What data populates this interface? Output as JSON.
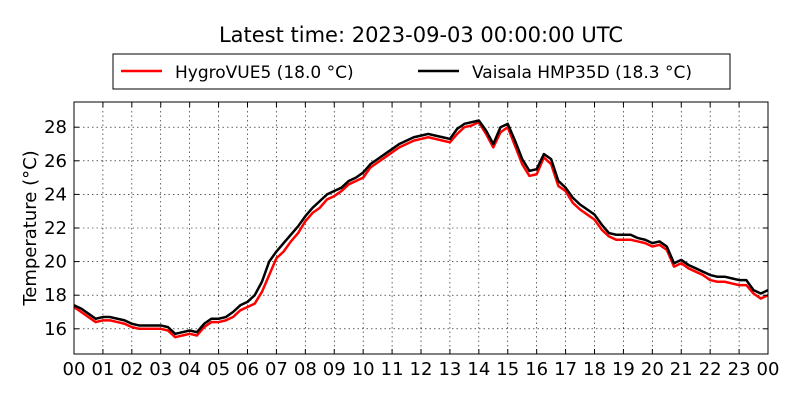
{
  "chart_data": {
    "type": "line",
    "title": "Latest time: 2023-09-03 00:00:00 UTC",
    "ylabel": "Temperature (°C)",
    "xlabel": "",
    "xlim": [
      0,
      24
    ],
    "ylim": [
      14.5,
      29.5
    ],
    "grid": true,
    "legend_position": "top",
    "x_tick_labels": [
      "00",
      "01",
      "02",
      "03",
      "04",
      "05",
      "06",
      "07",
      "08",
      "09",
      "10",
      "11",
      "12",
      "13",
      "14",
      "15",
      "16",
      "17",
      "18",
      "19",
      "20",
      "21",
      "22",
      "23",
      "00"
    ],
    "y_ticks": [
      16,
      18,
      20,
      22,
      24,
      26,
      28
    ],
    "y_tick_labels": [
      "16",
      "18",
      "20",
      "22",
      "24",
      "26",
      "28"
    ],
    "x_hours": [
      0,
      0.25,
      0.5,
      0.75,
      1,
      1.25,
      1.5,
      1.75,
      2,
      2.25,
      2.5,
      2.75,
      3,
      3.25,
      3.5,
      3.75,
      4,
      4.25,
      4.5,
      4.75,
      5,
      5.25,
      5.5,
      5.75,
      6,
      6.25,
      6.5,
      6.75,
      7,
      7.25,
      7.5,
      7.75,
      8,
      8.25,
      8.5,
      8.75,
      9,
      9.25,
      9.5,
      9.75,
      10,
      10.25,
      10.5,
      10.75,
      11,
      11.25,
      11.5,
      11.75,
      12,
      12.25,
      12.5,
      12.75,
      13,
      13.25,
      13.5,
      13.75,
      14,
      14.25,
      14.5,
      14.75,
      15,
      15.25,
      15.5,
      15.75,
      16,
      16.25,
      16.5,
      16.75,
      17,
      17.25,
      17.5,
      17.75,
      18,
      18.25,
      18.5,
      18.75,
      19,
      19.25,
      19.5,
      19.75,
      20,
      20.25,
      20.5,
      20.75,
      21,
      21.25,
      21.5,
      21.75,
      22,
      22.25,
      22.5,
      22.75,
      23,
      23.25,
      23.5,
      23.75,
      24
    ],
    "series": [
      {
        "name": "HygroVUE5 (18.0 °C)",
        "color": "#ff0000",
        "values": [
          17.3,
          17.0,
          16.7,
          16.4,
          16.5,
          16.5,
          16.4,
          16.3,
          16.1,
          16.0,
          16.0,
          16.0,
          16.0,
          15.9,
          15.5,
          15.6,
          15.7,
          15.6,
          16.1,
          16.4,
          16.4,
          16.5,
          16.7,
          17.1,
          17.3,
          17.5,
          18.2,
          19.2,
          20.2,
          20.6,
          21.2,
          21.7,
          22.4,
          22.9,
          23.2,
          23.7,
          23.9,
          24.2,
          24.6,
          24.8,
          25.0,
          25.6,
          25.9,
          26.2,
          26.5,
          26.8,
          27.0,
          27.2,
          27.3,
          27.4,
          27.3,
          27.2,
          27.1,
          27.6,
          28.0,
          28.1,
          28.3,
          27.6,
          26.8,
          27.7,
          28.0,
          26.9,
          25.8,
          25.1,
          25.2,
          26.2,
          25.8,
          24.5,
          24.2,
          23.5,
          23.1,
          22.8,
          22.5,
          21.9,
          21.5,
          21.3,
          21.3,
          21.3,
          21.2,
          21.1,
          20.9,
          21.0,
          20.7,
          19.7,
          19.9,
          19.6,
          19.4,
          19.2,
          18.9,
          18.8,
          18.8,
          18.7,
          18.6,
          18.6,
          18.1,
          17.8,
          18.0
        ]
      },
      {
        "name": "Vaisala HMP35D (18.3 °C)",
        "color": "#000000",
        "values": [
          17.4,
          17.2,
          16.9,
          16.6,
          16.7,
          16.7,
          16.6,
          16.5,
          16.3,
          16.2,
          16.2,
          16.2,
          16.2,
          16.1,
          15.7,
          15.8,
          15.9,
          15.8,
          16.3,
          16.6,
          16.6,
          16.7,
          17.0,
          17.4,
          17.6,
          18.0,
          18.8,
          20.0,
          20.6,
          21.1,
          21.6,
          22.1,
          22.7,
          23.2,
          23.6,
          24.0,
          24.2,
          24.4,
          24.8,
          25.0,
          25.3,
          25.8,
          26.1,
          26.4,
          26.7,
          27.0,
          27.2,
          27.4,
          27.5,
          27.6,
          27.5,
          27.4,
          27.3,
          27.9,
          28.2,
          28.3,
          28.4,
          27.8,
          27.0,
          28.0,
          28.2,
          27.2,
          26.1,
          25.4,
          25.5,
          26.4,
          26.1,
          24.8,
          24.4,
          23.8,
          23.4,
          23.1,
          22.8,
          22.2,
          21.7,
          21.6,
          21.6,
          21.6,
          21.4,
          21.3,
          21.1,
          21.2,
          20.9,
          19.9,
          20.1,
          19.8,
          19.6,
          19.4,
          19.2,
          19.1,
          19.1,
          19.0,
          18.9,
          18.9,
          18.3,
          18.1,
          18.3
        ]
      }
    ]
  }
}
